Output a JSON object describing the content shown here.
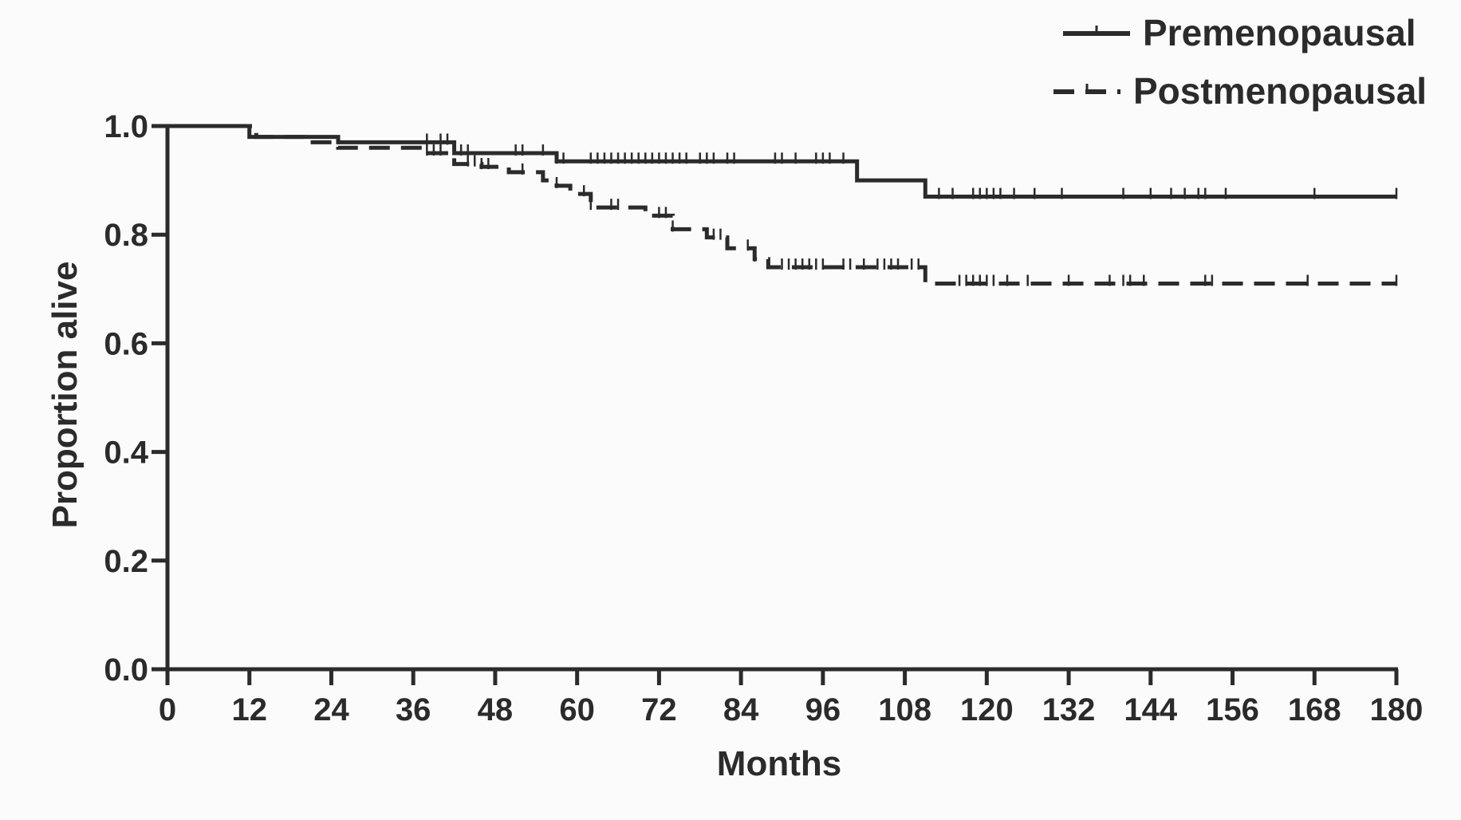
{
  "chart_data": {
    "type": "line",
    "subtype": "kaplan-meier",
    "title": "",
    "xlabel": "Months",
    "ylabel": "Proportion alive",
    "xlim": [
      0,
      180
    ],
    "ylim": [
      0,
      1
    ],
    "x_ticks": [
      0,
      12,
      24,
      36,
      48,
      60,
      72,
      84,
      96,
      108,
      120,
      132,
      144,
      156,
      168,
      180
    ],
    "y_ticks": [
      0.0,
      0.2,
      0.4,
      0.6,
      0.8,
      1.0
    ],
    "y_tick_labels": [
      "0.0",
      "0.2",
      "0.4",
      "0.6",
      "0.8",
      "1.0"
    ],
    "grid": false,
    "legend_position": "top-right",
    "series": [
      {
        "name": "Premenopausal",
        "line_style": "solid",
        "color": "#2b2b2b",
        "steps": [
          {
            "x": 0,
            "y": 1.0
          },
          {
            "x": 12,
            "y": 0.98
          },
          {
            "x": 25,
            "y": 0.97
          },
          {
            "x": 42,
            "y": 0.95
          },
          {
            "x": 57,
            "y": 0.935
          },
          {
            "x": 101,
            "y": 0.9
          },
          {
            "x": 111,
            "y": 0.87
          }
        ],
        "end_x": 180,
        "censored_x": [
          38,
          40,
          41,
          43,
          44,
          51,
          52,
          55,
          57,
          58,
          62,
          63,
          64,
          65,
          66,
          67,
          68,
          69,
          70,
          71,
          72,
          73,
          74,
          75,
          76,
          78,
          79,
          80,
          82,
          83,
          89,
          90,
          92,
          95,
          96,
          97,
          99,
          113,
          115,
          118,
          119,
          120,
          121,
          122,
          124,
          127,
          131,
          140,
          144,
          147,
          149,
          151,
          152,
          155,
          168,
          180
        ]
      },
      {
        "name": "Postmenopausal",
        "line_style": "dashed",
        "color": "#2b2b2b",
        "steps": [
          {
            "x": 0,
            "y": 1.0
          },
          {
            "x": 13,
            "y": 0.98
          },
          {
            "x": 20,
            "y": 0.97
          },
          {
            "x": 25,
            "y": 0.96
          },
          {
            "x": 38,
            "y": 0.95
          },
          {
            "x": 42,
            "y": 0.93
          },
          {
            "x": 46,
            "y": 0.925
          },
          {
            "x": 50,
            "y": 0.915
          },
          {
            "x": 55,
            "y": 0.9
          },
          {
            "x": 57,
            "y": 0.89
          },
          {
            "x": 59,
            "y": 0.875
          },
          {
            "x": 62,
            "y": 0.85
          },
          {
            "x": 70,
            "y": 0.835
          },
          {
            "x": 74,
            "y": 0.81
          },
          {
            "x": 79,
            "y": 0.795
          },
          {
            "x": 82,
            "y": 0.775
          },
          {
            "x": 86,
            "y": 0.755
          },
          {
            "x": 88,
            "y": 0.74
          },
          {
            "x": 111,
            "y": 0.71
          }
        ],
        "end_x": 180,
        "censored_x": [
          38,
          39,
          40,
          44,
          45,
          46,
          47,
          52,
          57,
          61,
          62,
          65,
          66,
          72,
          73,
          74,
          80,
          81,
          85,
          86,
          90,
          91,
          92,
          93,
          94,
          95,
          96,
          99,
          100,
          102,
          104,
          105,
          106,
          107,
          109,
          110,
          116,
          117,
          118,
          119,
          120,
          121,
          123,
          126,
          132,
          138,
          140,
          141,
          143,
          152,
          153,
          167,
          180
        ]
      }
    ]
  }
}
